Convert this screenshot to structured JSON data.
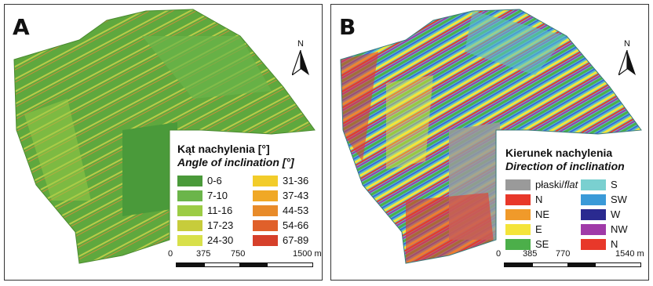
{
  "panels": [
    {
      "letter": "A",
      "north_label": "N",
      "legend_title": "Kąt nachylenia [°]",
      "legend_subtitle": "Angle of inclination [°]",
      "legend_left": [
        {
          "label": "0-6",
          "color": "#4a9a3a"
        },
        {
          "label": "7-10",
          "color": "#6bb54a"
        },
        {
          "label": "11-16",
          "color": "#9ccc45"
        },
        {
          "label": "17-23",
          "color": "#c7cc3b"
        },
        {
          "label": "24-30",
          "color": "#d8e04a"
        }
      ],
      "legend_right": [
        {
          "label": "31-36",
          "color": "#f2cc2a"
        },
        {
          "label": "37-43",
          "color": "#f0a826"
        },
        {
          "label": "44-53",
          "color": "#e88b2a"
        },
        {
          "label": "54-66",
          "color": "#e0602a"
        },
        {
          "label": "67-89",
          "color": "#d6402a"
        }
      ],
      "scale_labels": [
        "0",
        "375",
        "750",
        "1500 m"
      ]
    },
    {
      "letter": "B",
      "north_label": "N",
      "legend_title": "Kierunek nachylenia",
      "legend_subtitle": "Direction of inclination",
      "legend_left": [
        {
          "label": "płaski/",
          "label_italic": "flat",
          "color": "#9a9a9a"
        },
        {
          "label": "N",
          "color": "#e8382a"
        },
        {
          "label": "NE",
          "color": "#f09a2a"
        },
        {
          "label": "E",
          "color": "#f4e43a"
        },
        {
          "label": "SE",
          "color": "#4caf4a"
        }
      ],
      "legend_right": [
        {
          "label": "S",
          "color": "#7ad0d0"
        },
        {
          "label": "SW",
          "color": "#3a9ad8"
        },
        {
          "label": "W",
          "color": "#2a2a90"
        },
        {
          "label": "NW",
          "color": "#a03aa8"
        },
        {
          "label": "N",
          "color": "#e8382a"
        }
      ],
      "scale_labels": [
        "0",
        "385",
        "770",
        "1540 m"
      ]
    }
  ]
}
